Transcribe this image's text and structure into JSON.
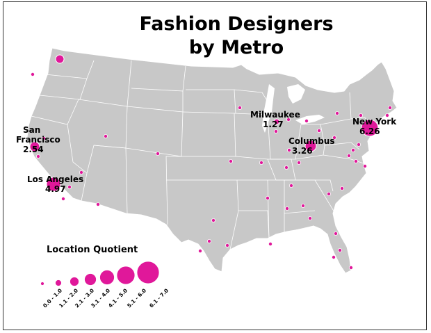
{
  "title": {
    "line1": "Fashion Designers",
    "line2": "by Metro"
  },
  "colors": {
    "land": "#c8c8c8",
    "border": "#ffffff",
    "marker": "#e0189a",
    "marker_outline": "#ffffff"
  },
  "labeled_metros": [
    {
      "name": "San Francisco",
      "line1": "San",
      "line2": "Francisco",
      "value": "2.54"
    },
    {
      "name": "Los Angeles",
      "line1": "Los Angeles",
      "line2": "",
      "value": "4.97"
    },
    {
      "name": "Milwaukee",
      "line1": "Milwaukee",
      "line2": "",
      "value": "1.27"
    },
    {
      "name": "Columbus",
      "line1": "Columbus",
      "line2": "",
      "value": "3.26"
    },
    {
      "name": "New York",
      "line1": "New York",
      "line2": "",
      "value": "6.26"
    }
  ],
  "legend": {
    "title": "Location Quotient",
    "classes": [
      "0.0 - 1.0",
      "1.1 - 2.0",
      "2.1 - 3.0",
      "3.1 - 4.0",
      "4.1 - 5.0",
      "5.1 - 6.0",
      "6.1 - 7.0"
    ]
  }
}
